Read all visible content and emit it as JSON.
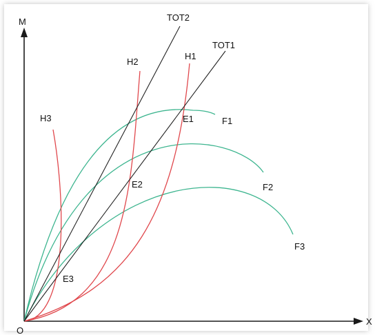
{
  "axes": {
    "y_label": "M",
    "x_label": "X",
    "origin_label": "O"
  },
  "lines": [
    {
      "key": "tot2",
      "label": "TOT2"
    },
    {
      "key": "tot1",
      "label": "TOT1"
    }
  ],
  "h_curves": [
    {
      "key": "h1",
      "label": "H1"
    },
    {
      "key": "h2",
      "label": "H2"
    },
    {
      "key": "h3",
      "label": "H3"
    }
  ],
  "f_curves": [
    {
      "key": "f1",
      "label": "F1"
    },
    {
      "key": "f2",
      "label": "F2"
    },
    {
      "key": "f3",
      "label": "F3"
    }
  ],
  "points": [
    {
      "key": "e1",
      "label": "E1"
    },
    {
      "key": "e2",
      "label": "E2"
    },
    {
      "key": "e3",
      "label": "E3"
    }
  ],
  "colors": {
    "axis": "#1a1a1a",
    "line": "#222222",
    "h_curve": "#e0474c",
    "f_curve": "#3db58f",
    "frame_shadow": "#c8c8c8"
  }
}
